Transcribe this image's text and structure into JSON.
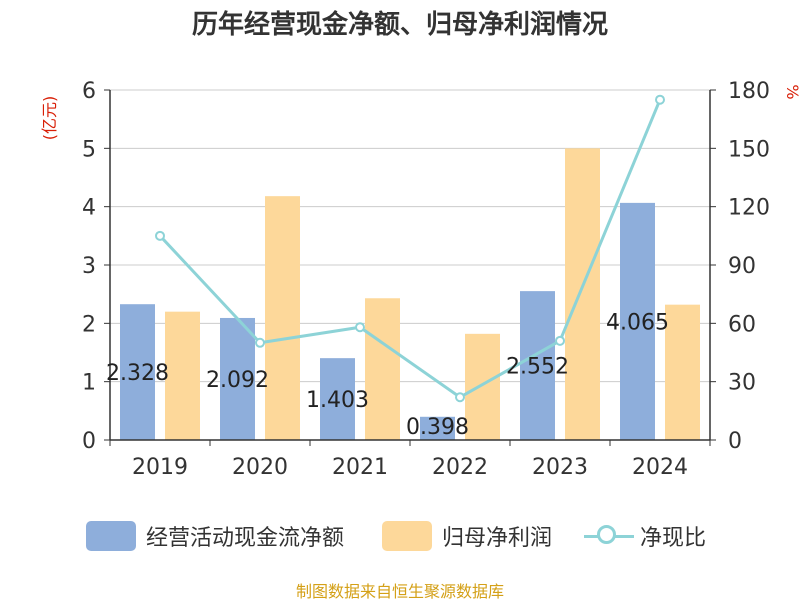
{
  "title": "历年经营现金净额、归母净利润情况",
  "source": "制图数据来自恒生聚源数据库",
  "colors": {
    "cash_flow": "#8eaedb",
    "net_profit": "#fdd89a",
    "ratio_line": "#8dd3d7",
    "axis_unit_color": "#d81e06",
    "source_color": "#d4a017"
  },
  "chart_data": {
    "type": "bar",
    "title": "历年经营现金净额、归母净利润情况",
    "categories": [
      "2019",
      "2020",
      "2021",
      "2022",
      "2023",
      "2024"
    ],
    "left_axis": {
      "unit": "(亿元)",
      "ylim": [
        0,
        6
      ],
      "ticks": [
        0,
        1,
        2,
        3,
        4,
        5,
        6
      ]
    },
    "right_axis": {
      "unit": "%",
      "ylim": [
        0,
        180
      ],
      "ticks": [
        0,
        30,
        60,
        90,
        120,
        150,
        180
      ]
    },
    "grid": true,
    "legend_position": "bottom",
    "series": [
      {
        "name": "经营活动现金流净额",
        "type": "bar",
        "axis": "left",
        "values": [
          2.328,
          2.092,
          1.403,
          0.398,
          2.552,
          4.065
        ],
        "labels": [
          "2.328",
          "2.092",
          "1.403",
          "0.398",
          "2.552",
          "4.065"
        ]
      },
      {
        "name": "归母净利润",
        "type": "bar",
        "axis": "left",
        "values": [
          2.2,
          4.18,
          2.43,
          1.82,
          5.0,
          2.32
        ]
      },
      {
        "name": "净现比",
        "type": "line",
        "axis": "right",
        "values": [
          105,
          50,
          58,
          22,
          51,
          175
        ]
      }
    ]
  }
}
